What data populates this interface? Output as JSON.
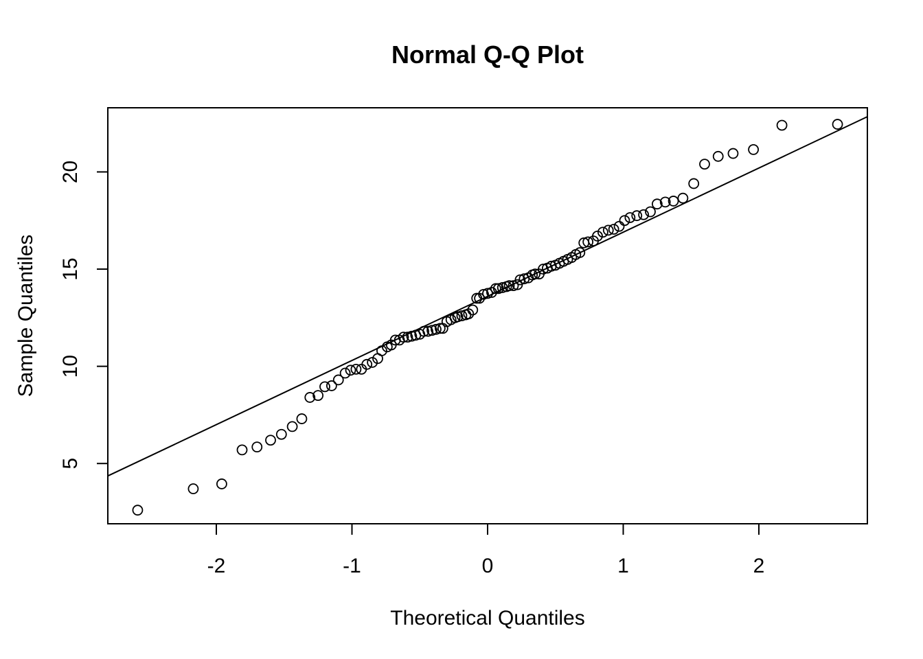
{
  "chart_data": {
    "type": "scatter",
    "title": "Normal Q-Q Plot",
    "xlabel": "Theoretical Quantiles",
    "ylabel": "Sample Quantiles",
    "xlim": [
      -2.8,
      2.8
    ],
    "ylim": [
      1.9,
      23.3
    ],
    "xticks": [
      {
        "value": -2,
        "label": "-2"
      },
      {
        "value": -1,
        "label": "-1"
      },
      {
        "value": 0,
        "label": "0"
      },
      {
        "value": 1,
        "label": "1"
      },
      {
        "value": 2,
        "label": "2"
      }
    ],
    "yticks": [
      {
        "value": 5,
        "label": "5"
      },
      {
        "value": 10,
        "label": "10"
      },
      {
        "value": 15,
        "label": "15"
      },
      {
        "value": 20,
        "label": "20"
      }
    ],
    "grid": false,
    "reference_line": {
      "intercept": 13.6,
      "slope": 3.3
    },
    "points": [
      {
        "x": -2.58,
        "y": 2.6
      },
      {
        "x": -2.17,
        "y": 3.7
      },
      {
        "x": -1.96,
        "y": 3.95
      },
      {
        "x": -1.81,
        "y": 5.7
      },
      {
        "x": -1.7,
        "y": 5.85
      },
      {
        "x": -1.6,
        "y": 6.2
      },
      {
        "x": -1.52,
        "y": 6.5
      },
      {
        "x": -1.44,
        "y": 6.9
      },
      {
        "x": -1.37,
        "y": 7.3
      },
      {
        "x": -1.31,
        "y": 8.4
      },
      {
        "x": -1.25,
        "y": 8.5
      },
      {
        "x": -1.2,
        "y": 8.95
      },
      {
        "x": -1.15,
        "y": 9.0
      },
      {
        "x": -1.1,
        "y": 9.3
      },
      {
        "x": -1.05,
        "y": 9.65
      },
      {
        "x": -1.01,
        "y": 9.8
      },
      {
        "x": -0.97,
        "y": 9.85
      },
      {
        "x": -0.93,
        "y": 9.85
      },
      {
        "x": -0.89,
        "y": 10.1
      },
      {
        "x": -0.85,
        "y": 10.2
      },
      {
        "x": -0.81,
        "y": 10.4
      },
      {
        "x": -0.78,
        "y": 10.8
      },
      {
        "x": -0.74,
        "y": 11.0
      },
      {
        "x": -0.71,
        "y": 11.1
      },
      {
        "x": -0.68,
        "y": 11.35
      },
      {
        "x": -0.65,
        "y": 11.35
      },
      {
        "x": -0.62,
        "y": 11.5
      },
      {
        "x": -0.59,
        "y": 11.5
      },
      {
        "x": -0.56,
        "y": 11.55
      },
      {
        "x": -0.53,
        "y": 11.6
      },
      {
        "x": -0.5,
        "y": 11.65
      },
      {
        "x": -0.47,
        "y": 11.8
      },
      {
        "x": -0.44,
        "y": 11.8
      },
      {
        "x": -0.41,
        "y": 11.85
      },
      {
        "x": -0.38,
        "y": 11.9
      },
      {
        "x": -0.35,
        "y": 11.95
      },
      {
        "x": -0.33,
        "y": 11.95
      },
      {
        "x": -0.3,
        "y": 12.3
      },
      {
        "x": -0.27,
        "y": 12.4
      },
      {
        "x": -0.24,
        "y": 12.5
      },
      {
        "x": -0.22,
        "y": 12.55
      },
      {
        "x": -0.19,
        "y": 12.6
      },
      {
        "x": -0.16,
        "y": 12.65
      },
      {
        "x": -0.14,
        "y": 12.7
      },
      {
        "x": -0.11,
        "y": 12.9
      },
      {
        "x": -0.08,
        "y": 13.5
      },
      {
        "x": -0.06,
        "y": 13.5
      },
      {
        "x": -0.03,
        "y": 13.7
      },
      {
        "x": 0.0,
        "y": 13.75
      },
      {
        "x": 0.03,
        "y": 13.8
      },
      {
        "x": 0.06,
        "y": 14.0
      },
      {
        "x": 0.08,
        "y": 14.0
      },
      {
        "x": 0.11,
        "y": 14.05
      },
      {
        "x": 0.14,
        "y": 14.1
      },
      {
        "x": 0.16,
        "y": 14.15
      },
      {
        "x": 0.19,
        "y": 14.15
      },
      {
        "x": 0.22,
        "y": 14.2
      },
      {
        "x": 0.24,
        "y": 14.45
      },
      {
        "x": 0.27,
        "y": 14.5
      },
      {
        "x": 0.3,
        "y": 14.55
      },
      {
        "x": 0.33,
        "y": 14.7
      },
      {
        "x": 0.35,
        "y": 14.75
      },
      {
        "x": 0.38,
        "y": 14.75
      },
      {
        "x": 0.41,
        "y": 15.0
      },
      {
        "x": 0.44,
        "y": 15.05
      },
      {
        "x": 0.47,
        "y": 15.15
      },
      {
        "x": 0.5,
        "y": 15.2
      },
      {
        "x": 0.53,
        "y": 15.3
      },
      {
        "x": 0.56,
        "y": 15.4
      },
      {
        "x": 0.59,
        "y": 15.5
      },
      {
        "x": 0.62,
        "y": 15.6
      },
      {
        "x": 0.65,
        "y": 15.75
      },
      {
        "x": 0.68,
        "y": 15.85
      },
      {
        "x": 0.71,
        "y": 16.35
      },
      {
        "x": 0.74,
        "y": 16.4
      },
      {
        "x": 0.78,
        "y": 16.45
      },
      {
        "x": 0.81,
        "y": 16.7
      },
      {
        "x": 0.85,
        "y": 16.9
      },
      {
        "x": 0.89,
        "y": 17.0
      },
      {
        "x": 0.93,
        "y": 17.05
      },
      {
        "x": 0.97,
        "y": 17.2
      },
      {
        "x": 1.01,
        "y": 17.5
      },
      {
        "x": 1.05,
        "y": 17.65
      },
      {
        "x": 1.1,
        "y": 17.75
      },
      {
        "x": 1.15,
        "y": 17.8
      },
      {
        "x": 1.2,
        "y": 17.95
      },
      {
        "x": 1.25,
        "y": 18.35
      },
      {
        "x": 1.31,
        "y": 18.45
      },
      {
        "x": 1.37,
        "y": 18.5
      },
      {
        "x": 1.44,
        "y": 18.65
      },
      {
        "x": 1.52,
        "y": 19.4
      },
      {
        "x": 1.6,
        "y": 20.4
      },
      {
        "x": 1.7,
        "y": 20.8
      },
      {
        "x": 1.81,
        "y": 20.95
      },
      {
        "x": 1.96,
        "y": 21.15
      },
      {
        "x": 2.17,
        "y": 22.4
      },
      {
        "x": 2.58,
        "y": 22.45
      }
    ]
  }
}
